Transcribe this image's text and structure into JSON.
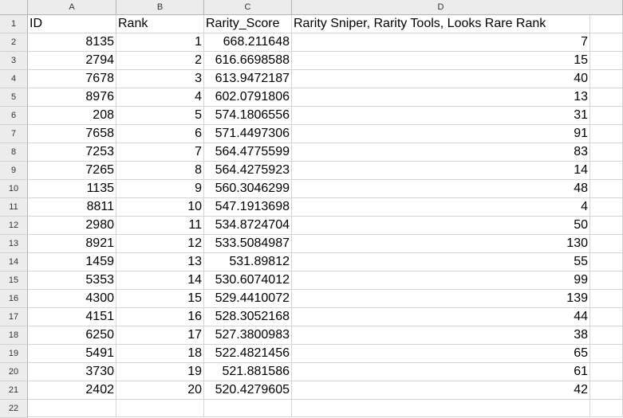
{
  "columns": [
    "A",
    "B",
    "C",
    "D"
  ],
  "row_numbers": [
    "1",
    "2",
    "3",
    "4",
    "5",
    "6",
    "7",
    "8",
    "9",
    "10",
    "11",
    "12",
    "13",
    "14",
    "15",
    "16",
    "17",
    "18",
    "19",
    "20",
    "21",
    "22"
  ],
  "headers": [
    "ID",
    "Rank",
    "Rarity_Score",
    "Rarity Sniper, Rarity Tools, Looks Rare Rank"
  ],
  "rows": [
    [
      "8135",
      "1",
      "668.211648",
      "7"
    ],
    [
      "2794",
      "2",
      "616.6698588",
      "15"
    ],
    [
      "7678",
      "3",
      "613.9472187",
      "40"
    ],
    [
      "8976",
      "4",
      "602.0791806",
      "13"
    ],
    [
      "208",
      "5",
      "574.1806556",
      "31"
    ],
    [
      "7658",
      "6",
      "571.4497306",
      "91"
    ],
    [
      "7253",
      "7",
      "564.4775599",
      "83"
    ],
    [
      "7265",
      "8",
      "564.4275923",
      "14"
    ],
    [
      "1135",
      "9",
      "560.3046299",
      "48"
    ],
    [
      "8811",
      "10",
      "547.1913698",
      "4"
    ],
    [
      "2980",
      "11",
      "534.8724704",
      "50"
    ],
    [
      "8921",
      "12",
      "533.5084987",
      "130"
    ],
    [
      "1459",
      "13",
      "531.89812",
      "55"
    ],
    [
      "5353",
      "14",
      "530.6074012",
      "99"
    ],
    [
      "4300",
      "15",
      "529.4410072",
      "139"
    ],
    [
      "4151",
      "16",
      "528.3052168",
      "44"
    ],
    [
      "6250",
      "17",
      "527.3800983",
      "38"
    ],
    [
      "5491",
      "18",
      "522.4821456",
      "65"
    ],
    [
      "3730",
      "19",
      "521.881586",
      "61"
    ],
    [
      "2402",
      "20",
      "520.4279605",
      "42"
    ]
  ]
}
